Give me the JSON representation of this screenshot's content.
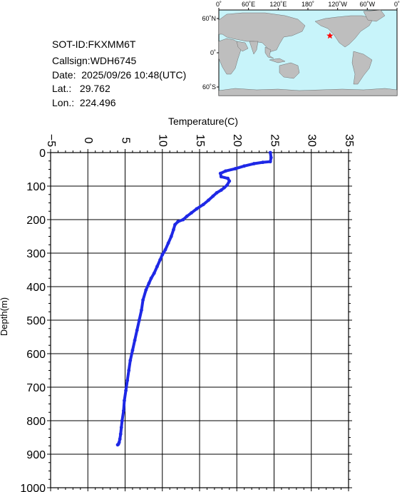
{
  "info": {
    "sot_id": "SOT-ID:FKXMM6T",
    "callsign": "Callsign:WDH6745",
    "date": "Date:  2025/09/26 10:48(UTC)",
    "lat": "Lat.:   29.762",
    "lon": "Lon.:  224.496"
  },
  "map": {
    "top_ticks": [
      "0˚",
      "60˚E",
      "120˚E",
      "180˚",
      "120˚W",
      "60˚W",
      "0˚"
    ],
    "left_ticks": [
      "60˚N",
      "0˚",
      "60˚S"
    ],
    "colors": {
      "ocean": "#c8f4fa",
      "land": "#bebebe",
      "marker": "#ff0000"
    },
    "marker": {
      "lon": 224.496,
      "lat": 29.762
    }
  },
  "chart_data": {
    "type": "line",
    "xlabel": "Temperature(C)",
    "ylabel": "Depth(m)",
    "xlim": [
      -5,
      35
    ],
    "ylim": [
      1000,
      0
    ],
    "x_ticks": [
      -5,
      0,
      5,
      10,
      15,
      20,
      25,
      30,
      35
    ],
    "y_ticks": [
      0,
      100,
      200,
      300,
      400,
      500,
      600,
      700,
      800,
      900,
      1000
    ],
    "grid": true,
    "line_color": "#1e28e6",
    "series": [
      {
        "x": [
          24.5,
          24.6,
          24.5,
          23.5,
          22.3,
          21.0,
          19.8,
          18.5,
          17.8,
          17.9,
          18.8,
          19.0,
          18.7,
          18.3,
          17.9,
          17.3,
          16.8,
          16.2,
          15.5,
          14.6,
          13.9,
          13.3,
          12.8,
          12.1,
          11.7,
          11.5,
          11.2,
          10.8,
          10.4,
          10.0,
          9.7,
          9.3,
          8.9,
          8.5,
          8.2,
          7.8,
          7.4,
          7.2,
          6.9,
          6.6,
          6.3,
          6.0,
          5.7,
          5.5,
          5.3,
          5.1,
          4.9,
          4.8,
          4.6,
          4.5,
          4.4,
          4.3,
          4.2,
          4.1,
          4.0
        ],
        "y": [
          0,
          15,
          27,
          29,
          33,
          40,
          48,
          55,
          62,
          72,
          77,
          85,
          97,
          105,
          112,
          120,
          130,
          142,
          155,
          168,
          180,
          190,
          200,
          206,
          215,
          230,
          250,
          270,
          290,
          305,
          320,
          340,
          360,
          375,
          390,
          410,
          440,
          470,
          500,
          530,
          560,
          590,
          620,
          650,
          680,
          710,
          740,
          770,
          800,
          820,
          840,
          855,
          865,
          870,
          872
        ]
      }
    ]
  }
}
